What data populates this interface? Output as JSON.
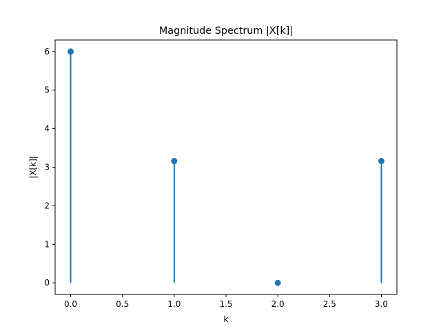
{
  "chart_data": {
    "type": "stem",
    "title": "Magnitude Spectrum |X[k]|",
    "xlabel": "k",
    "ylabel": "|X[k]|",
    "xlim": [
      -0.15,
      3.15
    ],
    "ylim": [
      -0.3,
      6.3
    ],
    "x_ticks": [
      0.0,
      0.5,
      1.0,
      1.5,
      2.0,
      2.5,
      3.0
    ],
    "x_tick_labels": [
      "0.0",
      "0.5",
      "1.0",
      "1.5",
      "2.0",
      "2.5",
      "3.0"
    ],
    "y_ticks": [
      0,
      1,
      2,
      3,
      4,
      5,
      6
    ],
    "y_tick_labels": [
      "0",
      "1",
      "2",
      "3",
      "4",
      "5",
      "6"
    ],
    "x": [
      0,
      1,
      2,
      3
    ],
    "values": [
      6.0,
      3.16,
      0.0,
      3.16
    ],
    "color": "#1f77b4",
    "grid": false
  }
}
